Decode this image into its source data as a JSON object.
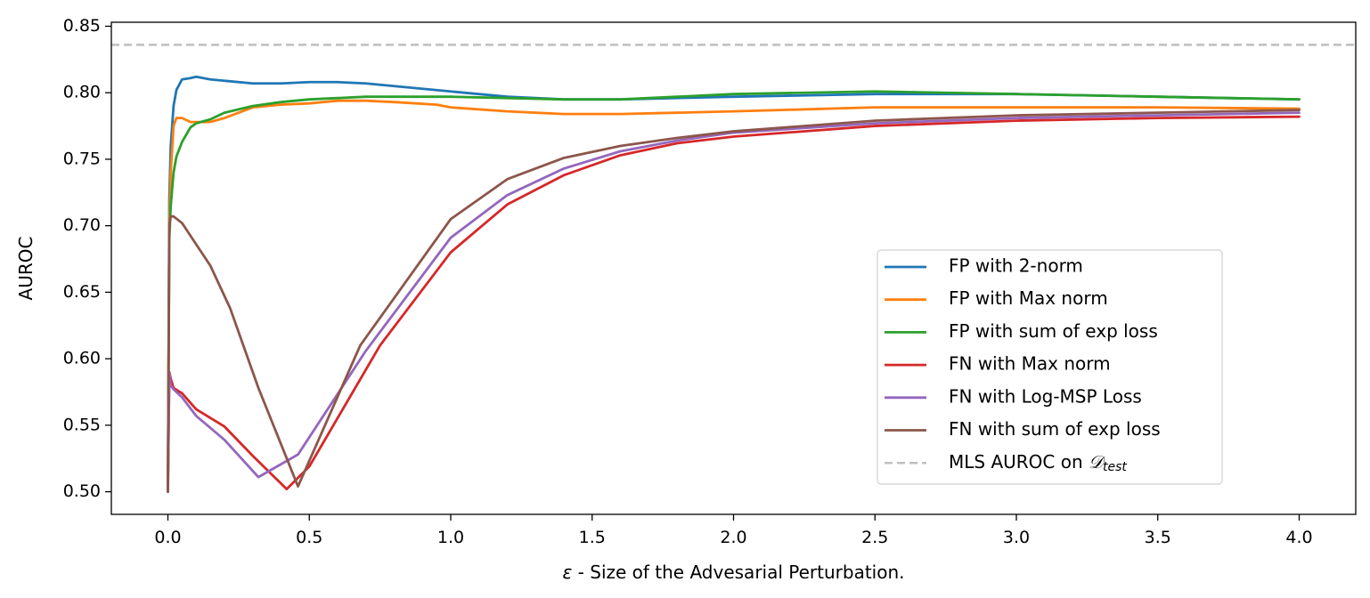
{
  "chart_data": {
    "type": "line",
    "title": "",
    "xlabel_symbol": "ε",
    "xlabel": " - Size of the Advesarial Perturbation.",
    "ylabel": "AUROC",
    "xlim": [
      -0.2,
      4.2
    ],
    "ylim": [
      0.483,
      0.853
    ],
    "xticks": [
      0.0,
      0.5,
      1.0,
      1.5,
      2.0,
      2.5,
      3.0,
      3.5,
      4.0
    ],
    "xtick_labels": [
      "0.0",
      "0.5",
      "1.0",
      "1.5",
      "2.0",
      "2.5",
      "3.0",
      "3.5",
      "4.0"
    ],
    "yticks": [
      0.5,
      0.55,
      0.6,
      0.65,
      0.7,
      0.75,
      0.8,
      0.85
    ],
    "ytick_labels": [
      "0.50",
      "0.55",
      "0.60",
      "0.65",
      "0.70",
      "0.75",
      "0.80",
      "0.85"
    ],
    "grid": false,
    "legend_position": "lower-right",
    "series": [
      {
        "name": "FP with 2-norm",
        "color": "#1f77b4",
        "x": [
          0.0,
          0.005,
          0.01,
          0.02,
          0.03,
          0.05,
          0.08,
          0.1,
          0.15,
          0.2,
          0.3,
          0.4,
          0.5,
          0.6,
          0.7,
          0.8,
          1.0,
          1.2,
          1.4,
          1.6,
          2.0,
          2.5,
          3.0,
          3.5,
          4.0
        ],
        "y": [
          0.5,
          0.72,
          0.76,
          0.79,
          0.802,
          0.81,
          0.811,
          0.812,
          0.81,
          0.809,
          0.807,
          0.807,
          0.808,
          0.808,
          0.807,
          0.805,
          0.801,
          0.797,
          0.795,
          0.795,
          0.797,
          0.799,
          0.799,
          0.797,
          0.795
        ]
      },
      {
        "name": "FP with Max norm",
        "color": "#ff7f0e",
        "x": [
          0.0,
          0.005,
          0.01,
          0.02,
          0.03,
          0.05,
          0.08,
          0.1,
          0.15,
          0.2,
          0.3,
          0.4,
          0.5,
          0.6,
          0.7,
          0.8,
          0.95,
          1.0,
          1.2,
          1.4,
          1.6,
          2.0,
          2.5,
          3.0,
          3.5,
          4.0
        ],
        "y": [
          0.5,
          0.7,
          0.74,
          0.775,
          0.781,
          0.781,
          0.778,
          0.778,
          0.778,
          0.781,
          0.789,
          0.791,
          0.792,
          0.794,
          0.794,
          0.793,
          0.791,
          0.789,
          0.786,
          0.784,
          0.784,
          0.786,
          0.789,
          0.789,
          0.789,
          0.788
        ]
      },
      {
        "name": "FP with sum of exp loss",
        "color": "#2ca02c",
        "x": [
          0.0,
          0.005,
          0.01,
          0.02,
          0.03,
          0.05,
          0.08,
          0.1,
          0.15,
          0.2,
          0.3,
          0.4,
          0.5,
          0.6,
          0.7,
          0.8,
          1.0,
          1.2,
          1.4,
          1.6,
          2.0,
          2.5,
          3.0,
          3.5,
          4.0
        ],
        "y": [
          0.5,
          0.69,
          0.715,
          0.74,
          0.752,
          0.763,
          0.774,
          0.777,
          0.78,
          0.785,
          0.79,
          0.793,
          0.795,
          0.796,
          0.797,
          0.797,
          0.797,
          0.796,
          0.795,
          0.795,
          0.799,
          0.801,
          0.799,
          0.797,
          0.795
        ]
      },
      {
        "name": "FN with Max norm",
        "color": "#d62728",
        "x": [
          0.0,
          0.005,
          0.01,
          0.02,
          0.05,
          0.1,
          0.2,
          0.3,
          0.42,
          0.5,
          0.75,
          1.0,
          1.2,
          1.4,
          1.6,
          1.8,
          2.0,
          2.5,
          3.0,
          3.5,
          4.0
        ],
        "y": [
          0.5,
          0.59,
          0.585,
          0.578,
          0.574,
          0.562,
          0.549,
          0.527,
          0.502,
          0.519,
          0.61,
          0.68,
          0.716,
          0.738,
          0.753,
          0.762,
          0.767,
          0.775,
          0.779,
          0.781,
          0.782
        ]
      },
      {
        "name": "FN with Log-MSP Loss",
        "color": "#9467bd",
        "x": [
          0.0,
          0.005,
          0.01,
          0.02,
          0.05,
          0.1,
          0.15,
          0.2,
          0.32,
          0.46,
          0.7,
          1.0,
          1.2,
          1.4,
          1.6,
          1.8,
          2.0,
          2.5,
          3.0,
          3.5,
          4.0
        ],
        "y": [
          0.5,
          0.59,
          0.58,
          0.577,
          0.571,
          0.557,
          0.548,
          0.539,
          0.511,
          0.528,
          0.606,
          0.691,
          0.723,
          0.743,
          0.756,
          0.764,
          0.77,
          0.777,
          0.781,
          0.783,
          0.785
        ]
      },
      {
        "name": "FN with sum of exp loss",
        "color": "#8c564b",
        "x": [
          0.0,
          0.005,
          0.01,
          0.02,
          0.05,
          0.1,
          0.15,
          0.22,
          0.32,
          0.46,
          0.68,
          1.0,
          1.2,
          1.4,
          1.6,
          1.8,
          2.0,
          2.5,
          3.0,
          3.5,
          4.0
        ],
        "y": [
          0.5,
          0.7,
          0.707,
          0.707,
          0.702,
          0.686,
          0.67,
          0.638,
          0.578,
          0.504,
          0.61,
          0.705,
          0.735,
          0.751,
          0.76,
          0.766,
          0.771,
          0.779,
          0.783,
          0.785,
          0.787
        ]
      }
    ],
    "reference_line": {
      "name_prefix": "MLS AUROC on ",
      "name_symbol": "𝒟",
      "name_subscript": "test",
      "y": 0.836,
      "color": "#bfbfbf",
      "style": "dashed"
    }
  }
}
